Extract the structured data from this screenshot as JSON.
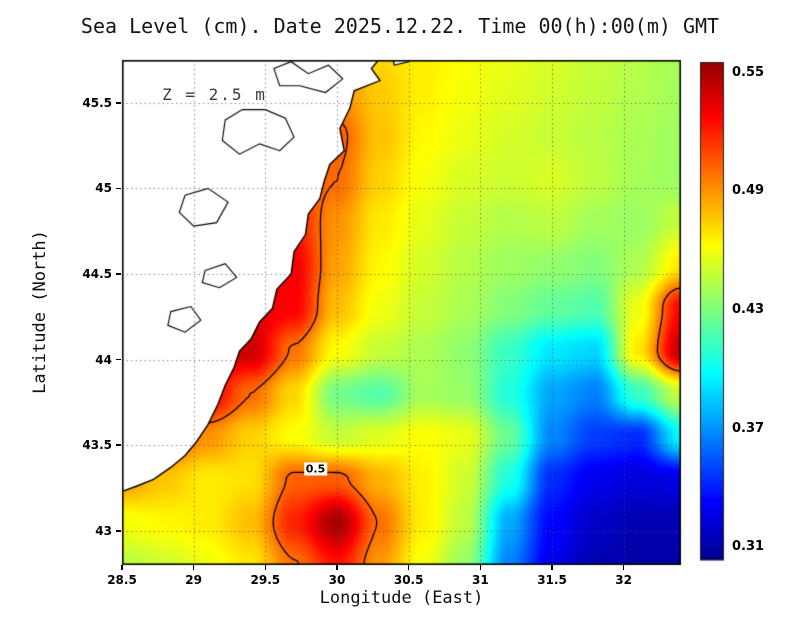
{
  "title": "Sea Level (cm). Date 2025.12.22. Time 00(h):00(m) GMT",
  "annotation": "Z = 2.5 m",
  "contour_label": "0.5",
  "axes": {
    "x": {
      "label": "Longitude (East)",
      "tick_labels": [
        "28.5",
        "29",
        "29.5",
        "30",
        "30.5",
        "31",
        "31.5",
        "32"
      ],
      "tick_values": [
        28.5,
        29,
        29.5,
        30,
        30.5,
        31,
        31.5,
        32
      ],
      "min": 28.5,
      "max": 32.4
    },
    "y": {
      "label": "Latitude (North)",
      "tick_labels": [
        "43",
        "43.5",
        "44",
        "44.5",
        "45",
        "45.5"
      ],
      "tick_values": [
        43,
        43.5,
        44,
        44.5,
        45,
        45.5
      ],
      "min": 42.8,
      "max": 45.75
    }
  },
  "colorbar": {
    "tick_labels": [
      "0.55",
      "0.49",
      "0.43",
      "0.37",
      "0.31"
    ],
    "tick_values": [
      0.55,
      0.49,
      0.43,
      0.37,
      0.31
    ],
    "min": 0.303,
    "max": 0.555
  },
  "chart_data": {
    "type": "heatmap",
    "title": "Sea Level (cm). Date 2025.12.22. Time 00(h):00(m) GMT",
    "xlabel": "Longitude (East)",
    "ylabel": "Latitude (North)",
    "annotation": "Z = 2.5 m",
    "colormap": "jet",
    "colormap_range": [
      0.3,
      0.56
    ],
    "contour_level": 0.5,
    "contour_label_position": {
      "lon": 29.85,
      "lat": 43.36
    },
    "annotation_position": {
      "lon": 28.78,
      "lat": 45.55
    },
    "lons": [
      28.5,
      28.8,
      29.1,
      29.4,
      29.7,
      30.0,
      30.3,
      30.6,
      30.9,
      31.2,
      31.5,
      31.8,
      32.1,
      32.4
    ],
    "lats": [
      45.8,
      45.55,
      45.3,
      45.05,
      44.8,
      44.55,
      44.3,
      44.05,
      43.8,
      43.55,
      43.3,
      43.05,
      42.8
    ],
    "values": [
      [
        0.47,
        0.47,
        0.47,
        0.472,
        0.478,
        0.48,
        0.472,
        0.466,
        0.462,
        0.458,
        0.453,
        0.448,
        0.444,
        0.44
      ],
      [
        0.478,
        0.478,
        0.48,
        0.484,
        0.49,
        0.492,
        0.476,
        0.466,
        0.46,
        0.455,
        0.451,
        0.447,
        0.443,
        0.439
      ],
      [
        0.48,
        0.482,
        0.484,
        0.49,
        0.5,
        0.504,
        0.478,
        0.464,
        0.457,
        0.452,
        0.449,
        0.445,
        0.441,
        0.438
      ],
      [
        0.488,
        0.49,
        0.492,
        0.5,
        0.51,
        0.5,
        0.474,
        0.46,
        0.453,
        0.45,
        0.453,
        0.446,
        0.44,
        0.437
      ],
      [
        0.498,
        0.5,
        0.502,
        0.51,
        0.52,
        0.49,
        0.468,
        0.456,
        0.448,
        0.443,
        0.446,
        0.439,
        0.437,
        0.448
      ],
      [
        0.508,
        0.512,
        0.518,
        0.525,
        0.53,
        0.486,
        0.464,
        0.452,
        0.444,
        0.438,
        0.435,
        0.431,
        0.442,
        0.468
      ],
      [
        0.518,
        0.522,
        0.53,
        0.535,
        0.528,
        0.479,
        0.459,
        0.448,
        0.441,
        0.431,
        0.423,
        0.418,
        0.458,
        0.527
      ],
      [
        0.528,
        0.532,
        0.54,
        0.54,
        0.498,
        0.462,
        0.448,
        0.442,
        0.434,
        0.412,
        0.392,
        0.387,
        0.468,
        0.543
      ],
      [
        0.52,
        0.524,
        0.53,
        0.5,
        0.473,
        0.427,
        0.419,
        0.44,
        0.436,
        0.406,
        0.375,
        0.365,
        0.412,
        0.448
      ],
      [
        0.5,
        0.508,
        0.49,
        0.474,
        0.462,
        0.448,
        0.455,
        0.462,
        0.457,
        0.424,
        0.367,
        0.348,
        0.343,
        0.396
      ],
      [
        0.488,
        0.477,
        0.467,
        0.47,
        0.503,
        0.504,
        0.482,
        0.466,
        0.45,
        0.405,
        0.343,
        0.328,
        0.323,
        0.326
      ],
      [
        0.46,
        0.464,
        0.467,
        0.479,
        0.519,
        0.55,
        0.499,
        0.466,
        0.446,
        0.376,
        0.333,
        0.318,
        0.313,
        0.313
      ],
      [
        0.445,
        0.451,
        0.459,
        0.469,
        0.499,
        0.524,
        0.489,
        0.46,
        0.436,
        0.366,
        0.328,
        0.313,
        0.31,
        0.31
      ]
    ],
    "coastline": [
      [
        30.34,
        45.8
      ],
      [
        30.24,
        45.7
      ],
      [
        30.3,
        45.63
      ],
      [
        30.12,
        45.57
      ],
      [
        30.09,
        45.47
      ],
      [
        30.02,
        45.35
      ],
      [
        30.05,
        45.22
      ],
      [
        29.95,
        45.14
      ],
      [
        29.91,
        45.04
      ],
      [
        29.88,
        44.94
      ],
      [
        29.8,
        44.85
      ],
      [
        29.78,
        44.73
      ],
      [
        29.7,
        44.63
      ],
      [
        29.68,
        44.5
      ],
      [
        29.58,
        44.41
      ],
      [
        29.55,
        44.3
      ],
      [
        29.46,
        44.22
      ],
      [
        29.4,
        44.12
      ],
      [
        29.32,
        44.05
      ],
      [
        29.28,
        43.95
      ],
      [
        29.22,
        43.85
      ],
      [
        29.17,
        43.74
      ],
      [
        29.1,
        43.62
      ],
      [
        29.02,
        43.52
      ],
      [
        28.94,
        43.44
      ],
      [
        28.84,
        43.37
      ],
      [
        28.72,
        43.3
      ],
      [
        28.6,
        43.26
      ],
      [
        28.5,
        43.23
      ]
    ],
    "islands": [
      [
        [
          30.38,
          45.8
        ],
        [
          30.52,
          45.8
        ],
        [
          30.5,
          45.74
        ],
        [
          30.4,
          45.72
        ]
      ]
    ],
    "lakes": [
      [
        [
          29.22,
          45.4
        ],
        [
          29.34,
          45.46
        ],
        [
          29.5,
          45.46
        ],
        [
          29.64,
          45.41
        ],
        [
          29.7,
          45.3
        ],
        [
          29.6,
          45.22
        ],
        [
          29.46,
          45.26
        ],
        [
          29.32,
          45.2
        ],
        [
          29.2,
          45.28
        ]
      ],
      [
        [
          28.94,
          44.96
        ],
        [
          29.1,
          45.0
        ],
        [
          29.24,
          44.92
        ],
        [
          29.16,
          44.8
        ],
        [
          29.0,
          44.78
        ],
        [
          28.9,
          44.86
        ]
      ],
      [
        [
          29.08,
          44.52
        ],
        [
          29.22,
          44.56
        ],
        [
          29.3,
          44.48
        ],
        [
          29.18,
          44.42
        ],
        [
          29.06,
          44.45
        ]
      ],
      [
        [
          28.84,
          44.28
        ],
        [
          28.98,
          44.31
        ],
        [
          29.05,
          44.23
        ],
        [
          28.94,
          44.16
        ],
        [
          28.82,
          44.2
        ]
      ],
      [
        [
          29.56,
          45.7
        ],
        [
          29.68,
          45.74
        ],
        [
          29.8,
          45.67
        ],
        [
          29.94,
          45.72
        ],
        [
          30.04,
          45.64
        ],
        [
          29.92,
          45.56
        ],
        [
          29.74,
          45.6
        ],
        [
          29.6,
          45.6
        ]
      ]
    ]
  }
}
